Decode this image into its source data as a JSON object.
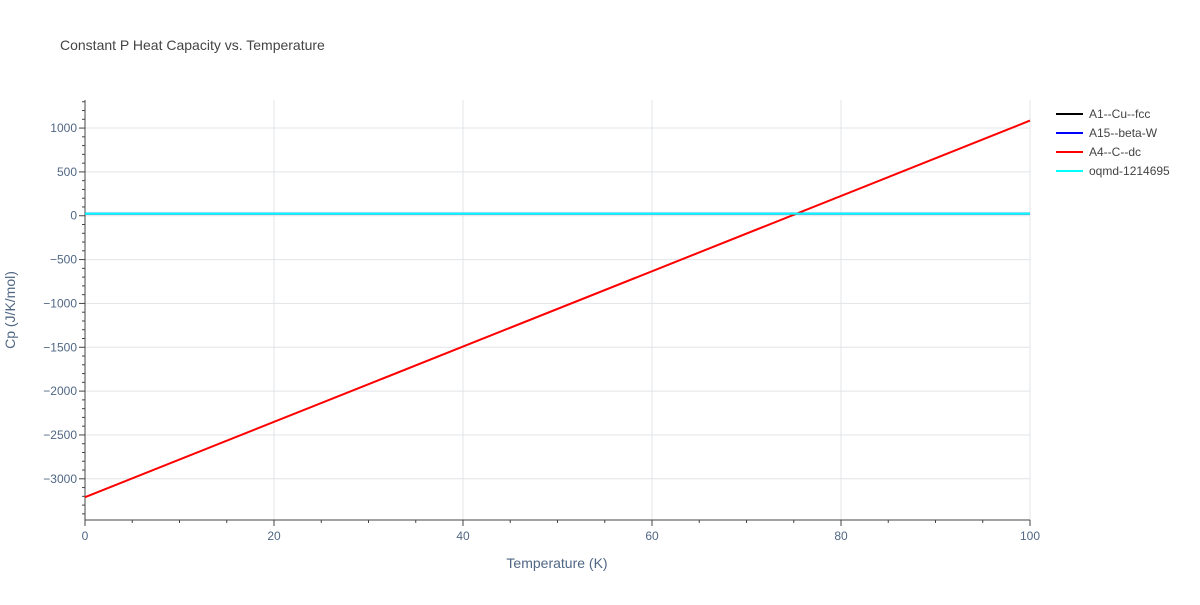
{
  "chart_data": {
    "type": "line",
    "title": "Constant P Heat Capacity vs. Temperature",
    "xlabel": "Temperature (K)",
    "ylabel": "Cp (J/K/mol)",
    "xlim": [
      0,
      100
    ],
    "ylim": [
      -3470,
      1320
    ],
    "x_ticks": [
      0,
      20,
      40,
      60,
      80,
      100
    ],
    "x_tick_labels": [
      "0",
      "20",
      "40",
      "60",
      "80",
      "100"
    ],
    "y_ticks": [
      1000,
      500,
      0,
      -500,
      -1000,
      -1500,
      -2000,
      -2500,
      -3000
    ],
    "y_tick_labels": [
      "1000",
      "500",
      "0",
      "−500",
      "−1000",
      "−1500",
      "−2000",
      "−2500",
      "−3000"
    ],
    "grid": true,
    "legend_position": "top-right",
    "series": [
      {
        "name": "A1--Cu--fcc",
        "color": "#000000",
        "x": [
          0,
          100
        ],
        "y": [
          24,
          24
        ]
      },
      {
        "name": "A15--beta-W",
        "color": "#0000ff",
        "x": [
          0,
          100
        ],
        "y": [
          24,
          24
        ]
      },
      {
        "name": "A4--C--dc",
        "color": "#ff0000",
        "x": [
          0,
          100
        ],
        "y": [
          -3210,
          1085
        ]
      },
      {
        "name": "oqmd-1214695",
        "color": "#00ffff",
        "x": [
          0,
          100
        ],
        "y": [
          24,
          24
        ]
      }
    ]
  }
}
